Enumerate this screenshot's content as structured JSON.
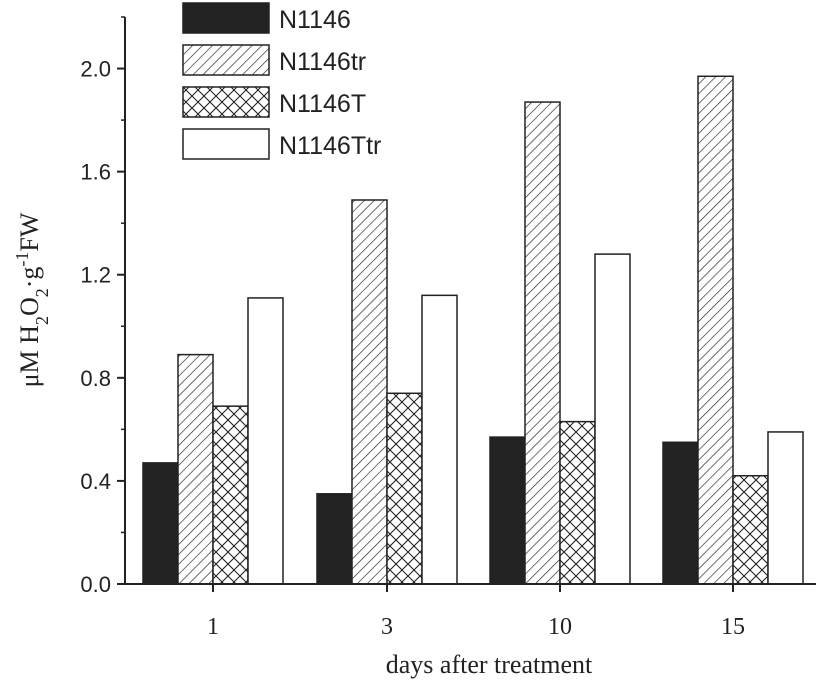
{
  "chart_data": {
    "type": "bar",
    "categories": [
      "1",
      "3",
      "10",
      "15"
    ],
    "series": [
      {
        "name": "N1146",
        "values": [
          0.47,
          0.35,
          0.57,
          0.55
        ],
        "pattern": "solid"
      },
      {
        "name": "N1146tr",
        "values": [
          0.89,
          1.49,
          1.87,
          1.97
        ],
        "pattern": "hatch"
      },
      {
        "name": "N1146T",
        "values": [
          0.69,
          0.74,
          0.63,
          0.42
        ],
        "pattern": "crosshatch"
      },
      {
        "name": "N1146Ttr",
        "values": [
          1.11,
          1.12,
          1.28,
          0.59
        ],
        "pattern": "empty"
      }
    ],
    "title": "",
    "xlabel": "days after treatment",
    "ylabel": "μM H2O2·g-1FW",
    "ylabel_parts": {
      "main1": "μM H",
      "sub1": "2",
      "main2": "O",
      "sub2": "2",
      "main3": "·g",
      "sup": "-1",
      "main4": "FW"
    },
    "ylim": [
      0.0,
      2.2
    ],
    "yticks": [
      "0.0",
      "0.4",
      "0.8",
      "1.2",
      "1.6",
      "2.0"
    ],
    "ytick_values": [
      0.0,
      0.4,
      0.8,
      1.2,
      1.6,
      2.0
    ],
    "grid": false,
    "legend_position": "top-left",
    "colors": {
      "ink": "#222222",
      "fill": "#ffffff"
    }
  }
}
